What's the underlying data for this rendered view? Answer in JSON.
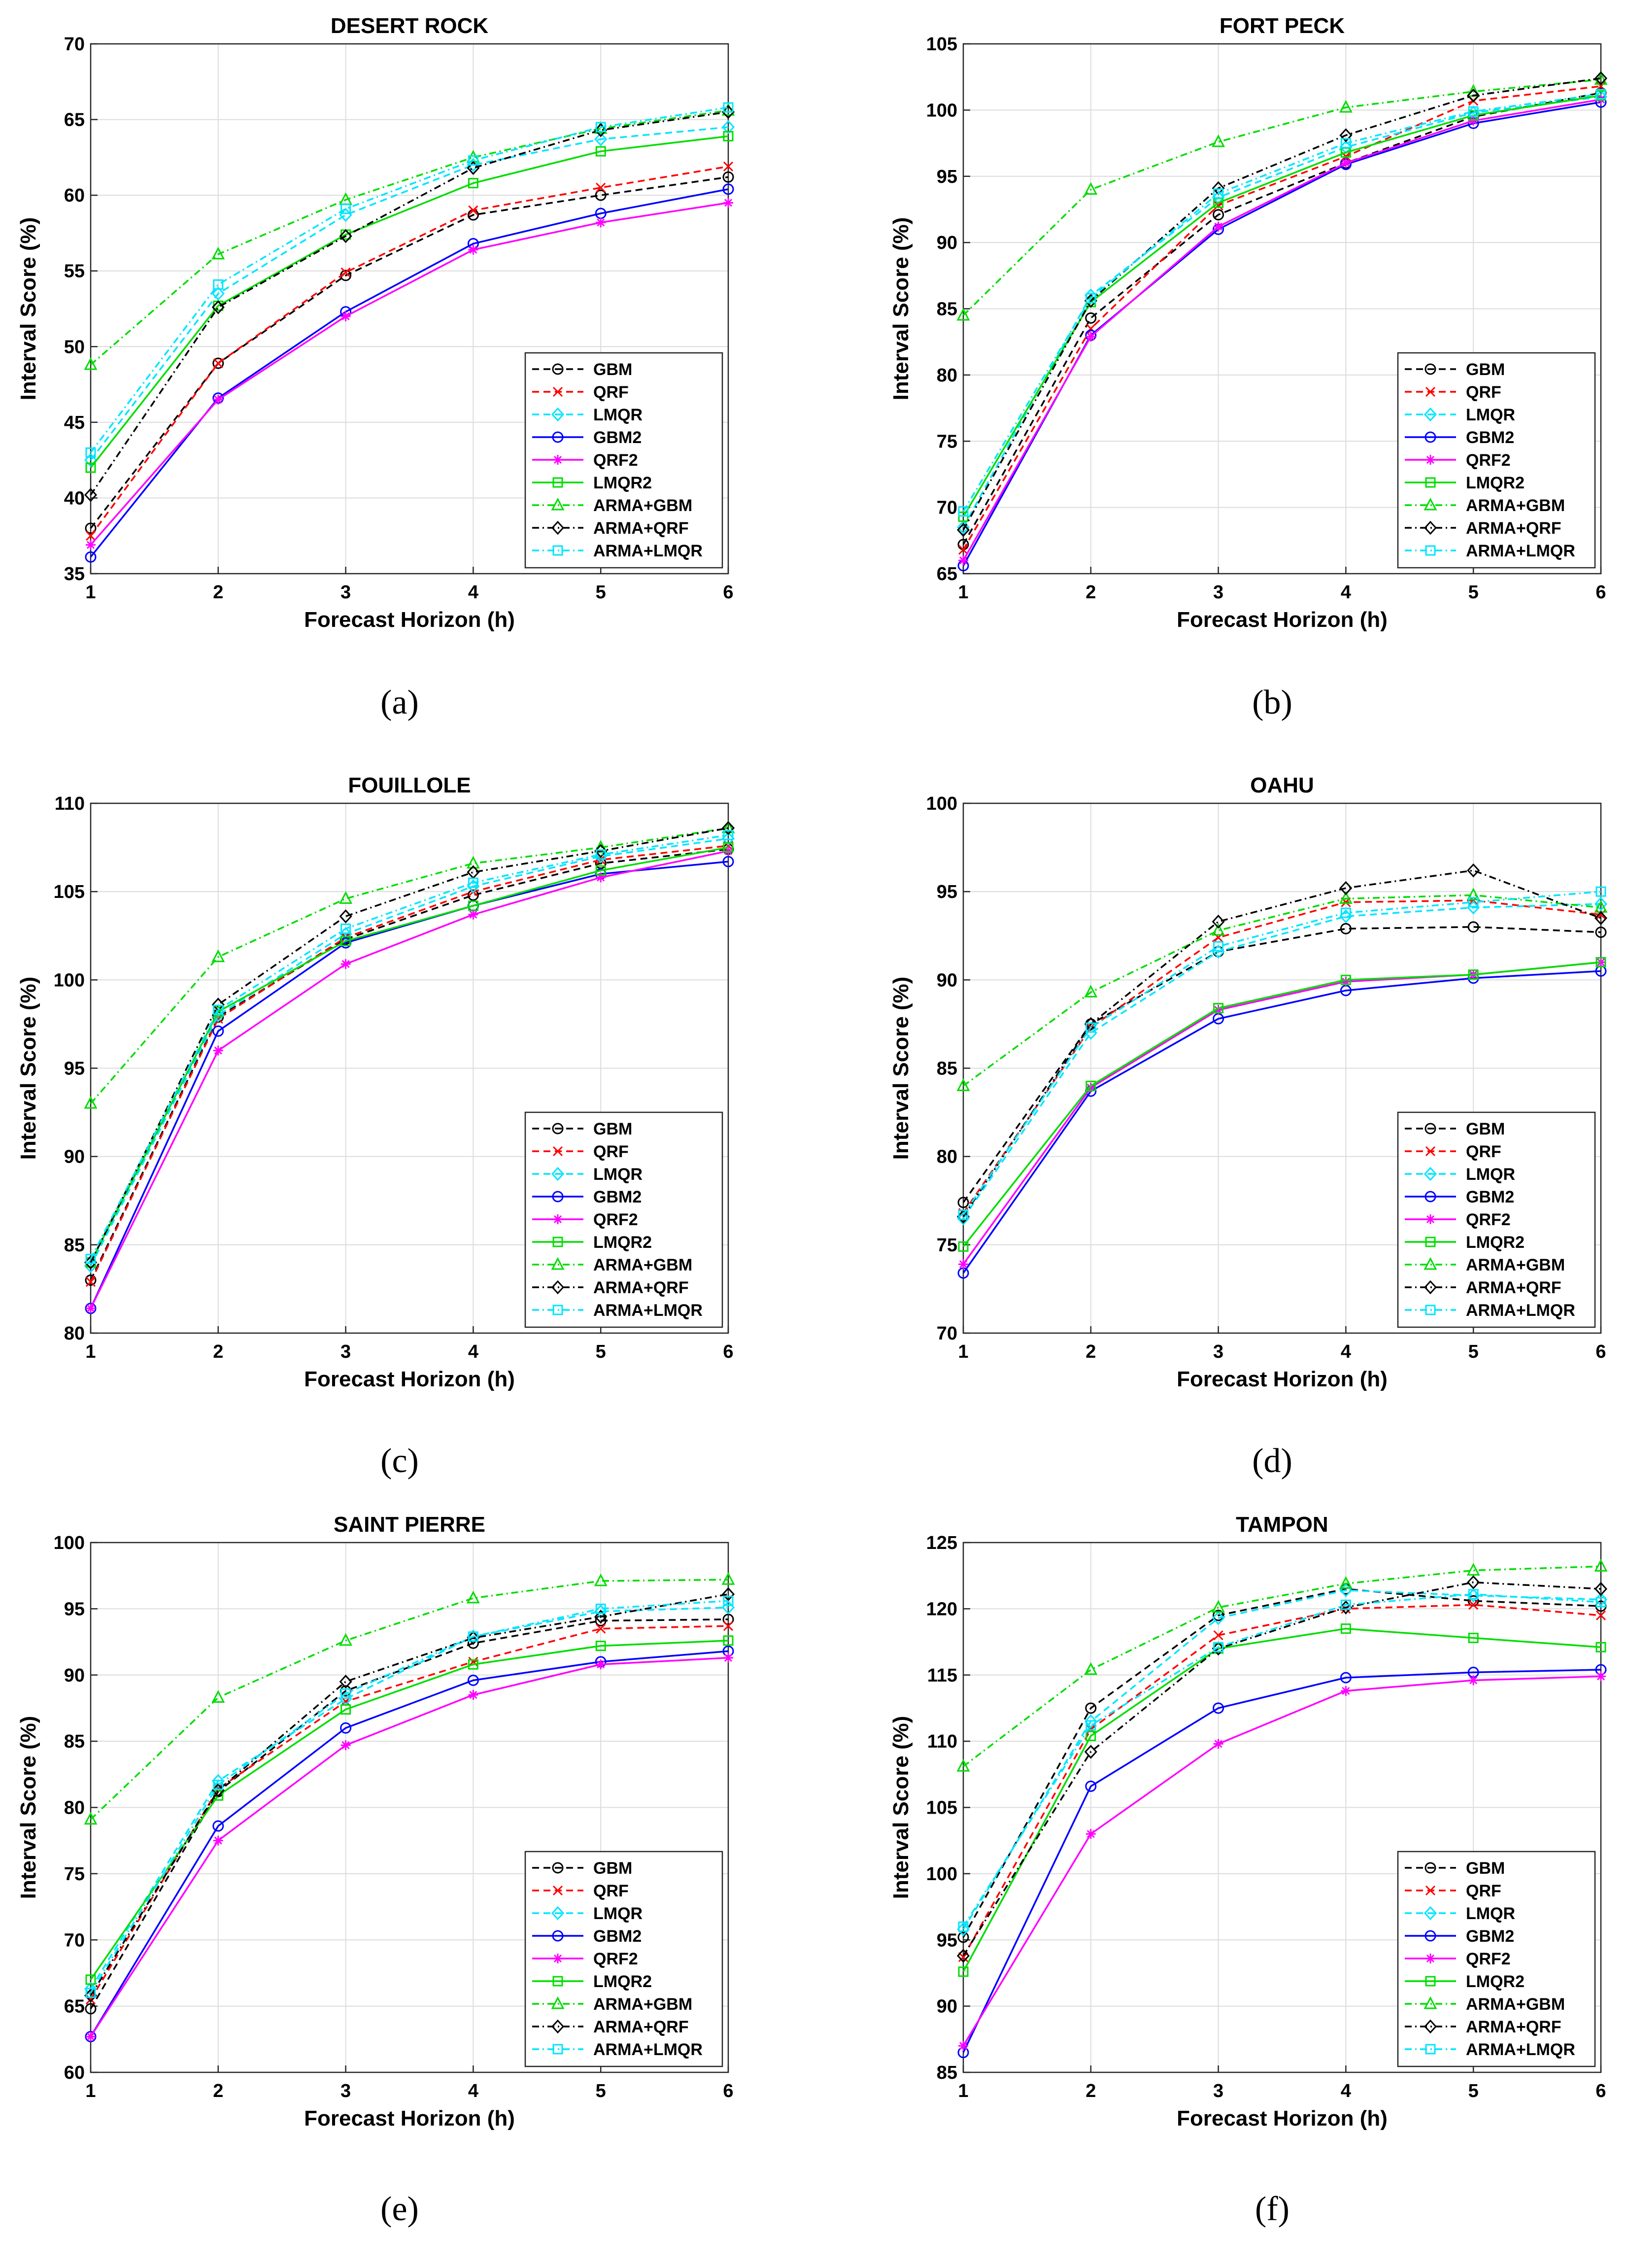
{
  "figure": {
    "xlabel": "Forecast Horizon (h)",
    "ylabel": "Interval Score (%)",
    "colors": {
      "GBM": "#000000",
      "QRF": "#ff0000",
      "LMQR": "#00e5ff",
      "GBM2": "#0000ff",
      "QRF2": "#ff00ff",
      "LMQR2": "#00dd00",
      "ARMA+GBM": "#00dd00",
      "ARMA+QRF": "#000000",
      "ARMA+LMQR": "#00e5ff"
    },
    "series_style": [
      {
        "name": "GBM",
        "dash": "dashed",
        "marker": "circle"
      },
      {
        "name": "QRF",
        "dash": "dashed",
        "marker": "cross"
      },
      {
        "name": "LMQR",
        "dash": "dashed",
        "marker": "diamond"
      },
      {
        "name": "GBM2",
        "dash": "solid",
        "marker": "circle"
      },
      {
        "name": "QRF2",
        "dash": "solid",
        "marker": "star"
      },
      {
        "name": "LMQR2",
        "dash": "solid",
        "marker": "square"
      },
      {
        "name": "ARMA+GBM",
        "dash": "dashdot",
        "marker": "triangle"
      },
      {
        "name": "ARMA+QRF",
        "dash": "dashdot",
        "marker": "diamond"
      },
      {
        "name": "ARMA+LMQR",
        "dash": "dashdot",
        "marker": "square"
      }
    ]
  },
  "chart_data": [
    {
      "type": "line",
      "title": "DESERT ROCK",
      "caption": "(a)",
      "caption_letter": "a",
      "xlabel": "Forecast Horizon (h)",
      "ylabel": "Interval Score (%)",
      "x": [
        1,
        2,
        3,
        4,
        5,
        6
      ],
      "xlim": [
        1,
        6
      ],
      "ylim": [
        35,
        70
      ],
      "yticks": [
        35,
        40,
        45,
        50,
        55,
        60,
        65,
        70
      ],
      "legend": "lower-right",
      "series": [
        {
          "name": "GBM",
          "values": [
            38.0,
            48.9,
            54.7,
            58.7,
            60.0,
            61.2
          ]
        },
        {
          "name": "QRF",
          "values": [
            37.5,
            48.9,
            54.9,
            59.0,
            60.5,
            61.9
          ]
        },
        {
          "name": "LMQR",
          "values": [
            42.5,
            53.5,
            58.7,
            62.0,
            63.7,
            64.5
          ]
        },
        {
          "name": "GBM2",
          "values": [
            36.1,
            46.6,
            52.3,
            56.8,
            58.8,
            60.4
          ]
        },
        {
          "name": "QRF2",
          "values": [
            36.9,
            46.5,
            52.0,
            56.4,
            58.2,
            59.5
          ]
        },
        {
          "name": "LMQR2",
          "values": [
            42.0,
            52.7,
            57.4,
            60.8,
            62.9,
            63.9
          ]
        },
        {
          "name": "ARMA+GBM",
          "values": [
            48.8,
            56.1,
            59.7,
            62.5,
            64.4,
            65.6
          ]
        },
        {
          "name": "ARMA+QRF",
          "values": [
            40.2,
            52.6,
            57.3,
            61.8,
            64.3,
            65.5
          ]
        },
        {
          "name": "ARMA+LMQR",
          "values": [
            43.0,
            54.1,
            59.1,
            62.3,
            64.5,
            65.8
          ]
        }
      ]
    },
    {
      "type": "line",
      "title": "FORT PECK",
      "caption": "(b)",
      "caption_letter": "b",
      "xlabel": "Forecast Horizon (h)",
      "ylabel": "Interval Score (%)",
      "x": [
        1,
        2,
        3,
        4,
        5,
        6
      ],
      "xlim": [
        1,
        6
      ],
      "ylim": [
        65,
        105
      ],
      "yticks": [
        65,
        70,
        75,
        80,
        85,
        90,
        95,
        100,
        105
      ],
      "legend": "lower-right",
      "series": [
        {
          "name": "GBM",
          "values": [
            67.2,
            84.3,
            92.1,
            96.0,
            99.5,
            101.3
          ]
        },
        {
          "name": "QRF",
          "values": [
            66.8,
            83.5,
            92.8,
            96.5,
            100.7,
            101.8
          ]
        },
        {
          "name": "LMQR",
          "values": [
            68.5,
            86.0,
            93.4,
            97.2,
            99.8,
            101.0
          ]
        },
        {
          "name": "GBM2",
          "values": [
            65.6,
            83.0,
            91.0,
            95.9,
            99.0,
            100.6
          ]
        },
        {
          "name": "QRF2",
          "values": [
            66.0,
            82.9,
            91.2,
            96.0,
            99.2,
            100.8
          ]
        },
        {
          "name": "LMQR2",
          "values": [
            69.3,
            85.5,
            93.0,
            96.8,
            99.6,
            101.1
          ]
        },
        {
          "name": "ARMA+GBM",
          "values": [
            84.5,
            94.0,
            97.6,
            100.2,
            101.4,
            102.3
          ]
        },
        {
          "name": "ARMA+QRF",
          "values": [
            68.3,
            85.6,
            94.1,
            98.1,
            101.1,
            102.4
          ]
        },
        {
          "name": "ARMA+LMQR",
          "values": [
            69.7,
            85.8,
            93.7,
            97.5,
            99.9,
            101.2
          ]
        }
      ]
    },
    {
      "type": "line",
      "title": "FOUILLOLE",
      "caption": "(c)",
      "caption_letter": "c",
      "xlabel": "Forecast Horizon (h)",
      "ylabel": "Interval Score (%)",
      "x": [
        1,
        2,
        3,
        4,
        5,
        6
      ],
      "xlim": [
        1,
        6
      ],
      "ylim": [
        80,
        110
      ],
      "yticks": [
        80,
        85,
        90,
        95,
        100,
        105,
        110
      ],
      "legend": "lower-right",
      "series": [
        {
          "name": "GBM",
          "values": [
            83.0,
            97.9,
            102.3,
            104.8,
            106.6,
            107.4
          ]
        },
        {
          "name": "QRF",
          "values": [
            82.9,
            97.8,
            102.4,
            105.0,
            106.8,
            107.6
          ]
        },
        {
          "name": "LMQR",
          "values": [
            83.8,
            98.0,
            102.6,
            105.3,
            107.0,
            108.0
          ]
        },
        {
          "name": "GBM2",
          "values": [
            81.4,
            97.1,
            102.1,
            104.2,
            106.0,
            106.7
          ]
        },
        {
          "name": "QRF2",
          "values": [
            81.4,
            96.0,
            100.9,
            103.7,
            105.8,
            107.3
          ]
        },
        {
          "name": "LMQR2",
          "values": [
            84.0,
            98.2,
            102.2,
            104.2,
            106.2,
            107.5
          ]
        },
        {
          "name": "ARMA+GBM",
          "values": [
            93.0,
            101.3,
            104.6,
            106.6,
            107.5,
            108.6
          ]
        },
        {
          "name": "ARMA+QRF",
          "values": [
            84.0,
            98.6,
            103.6,
            106.1,
            107.3,
            108.6
          ]
        },
        {
          "name": "ARMA+LMQR",
          "values": [
            84.2,
            98.3,
            102.9,
            105.5,
            107.1,
            108.2
          ]
        }
      ]
    },
    {
      "type": "line",
      "title": "OAHU",
      "caption": "(d)",
      "caption_letter": "d",
      "xlabel": "Forecast Horizon (h)",
      "ylabel": "Interval Score (%)",
      "x": [
        1,
        2,
        3,
        4,
        5,
        6
      ],
      "xlim": [
        1,
        6
      ],
      "ylim": [
        70,
        100
      ],
      "yticks": [
        70,
        75,
        80,
        85,
        90,
        95,
        100
      ],
      "legend": "lower-right",
      "series": [
        {
          "name": "GBM",
          "values": [
            77.4,
            87.5,
            91.6,
            92.9,
            93.0,
            92.7
          ]
        },
        {
          "name": "QRF",
          "values": [
            76.8,
            87.3,
            92.4,
            94.4,
            94.5,
            93.7
          ]
        },
        {
          "name": "LMQR",
          "values": [
            76.5,
            87.0,
            91.6,
            93.6,
            94.1,
            94.3
          ]
        },
        {
          "name": "GBM2",
          "values": [
            73.4,
            83.7,
            87.8,
            89.4,
            90.1,
            90.5
          ]
        },
        {
          "name": "QRF2",
          "values": [
            73.9,
            83.9,
            88.3,
            89.9,
            90.3,
            91.0
          ]
        },
        {
          "name": "LMQR2",
          "values": [
            74.9,
            84.0,
            88.4,
            90.0,
            90.3,
            91.0
          ]
        },
        {
          "name": "ARMA+GBM",
          "values": [
            84.0,
            89.3,
            92.8,
            94.6,
            94.8,
            94.1
          ]
        },
        {
          "name": "ARMA+QRF",
          "values": [
            76.6,
            87.5,
            93.3,
            95.2,
            96.2,
            93.5
          ]
        },
        {
          "name": "ARMA+LMQR",
          "values": [
            76.7,
            87.3,
            91.9,
            93.8,
            94.4,
            95.0
          ]
        }
      ]
    },
    {
      "type": "line",
      "title": "SAINT PIERRE",
      "caption": "(e)",
      "caption_letter": "e",
      "xlabel": "Forecast Horizon (h)",
      "ylabel": "Interval Score (%)",
      "x": [
        1,
        2,
        3,
        4,
        5,
        6
      ],
      "xlim": [
        1,
        6
      ],
      "ylim": [
        60,
        100
      ],
      "yticks": [
        60,
        65,
        70,
        75,
        80,
        85,
        90,
        95,
        100
      ],
      "legend": "lower-right",
      "series": [
        {
          "name": "GBM",
          "values": [
            64.8,
            81.2,
            88.8,
            92.4,
            94.1,
            94.2
          ]
        },
        {
          "name": "QRF",
          "values": [
            65.5,
            81.4,
            88.0,
            91.0,
            93.5,
            93.7
          ]
        },
        {
          "name": "LMQR",
          "values": [
            66.3,
            82.0,
            88.2,
            92.9,
            94.8,
            95.1
          ]
        },
        {
          "name": "GBM2",
          "values": [
            62.7,
            78.6,
            86.0,
            89.6,
            91.0,
            91.8
          ]
        },
        {
          "name": "QRF2",
          "values": [
            62.7,
            77.5,
            84.7,
            88.5,
            90.8,
            91.3
          ]
        },
        {
          "name": "LMQR2",
          "values": [
            67.0,
            80.9,
            87.4,
            90.8,
            92.2,
            92.6
          ]
        },
        {
          "name": "ARMA+GBM",
          "values": [
            79.1,
            88.3,
            92.6,
            95.8,
            97.1,
            97.2
          ]
        },
        {
          "name": "ARMA+QRF",
          "values": [
            65.8,
            81.3,
            89.5,
            92.8,
            94.4,
            96.1
          ]
        },
        {
          "name": "ARMA+LMQR",
          "values": [
            66.0,
            81.7,
            88.6,
            92.9,
            95.0,
            95.6
          ]
        }
      ]
    },
    {
      "type": "line",
      "title": "TAMPON",
      "caption": "(f)",
      "caption_letter": "f",
      "xlabel": "Forecast Horizon (h)",
      "ylabel": "Interval Score (%)",
      "x": [
        1,
        2,
        3,
        4,
        5,
        6
      ],
      "xlim": [
        1,
        6
      ],
      "ylim": [
        85,
        125
      ],
      "yticks": [
        85,
        90,
        95,
        100,
        105,
        110,
        115,
        120,
        125
      ],
      "legend": "lower-right",
      "series": [
        {
          "name": "GBM",
          "values": [
            95.2,
            112.5,
            119.5,
            121.5,
            120.6,
            120.2
          ]
        },
        {
          "name": "QRF",
          "values": [
            93.7,
            110.9,
            118.0,
            120.0,
            120.3,
            119.5
          ]
        },
        {
          "name": "LMQR",
          "values": [
            95.8,
            111.5,
            119.3,
            121.4,
            121.0,
            120.7
          ]
        },
        {
          "name": "GBM2",
          "values": [
            86.5,
            106.6,
            112.5,
            114.8,
            115.2,
            115.4
          ]
        },
        {
          "name": "QRF2",
          "values": [
            87.0,
            103.0,
            109.8,
            113.8,
            114.6,
            114.9
          ]
        },
        {
          "name": "LMQR2",
          "values": [
            92.6,
            110.4,
            117.0,
            118.5,
            117.8,
            117.1
          ]
        },
        {
          "name": "ARMA+GBM",
          "values": [
            108.1,
            115.4,
            120.1,
            121.9,
            122.9,
            123.2
          ]
        },
        {
          "name": "ARMA+QRF",
          "values": [
            93.8,
            109.2,
            117.0,
            120.1,
            122.0,
            121.5
          ]
        },
        {
          "name": "ARMA+LMQR",
          "values": [
            96.0,
            111.2,
            117.1,
            120.3,
            121.1,
            120.5
          ]
        }
      ]
    }
  ]
}
